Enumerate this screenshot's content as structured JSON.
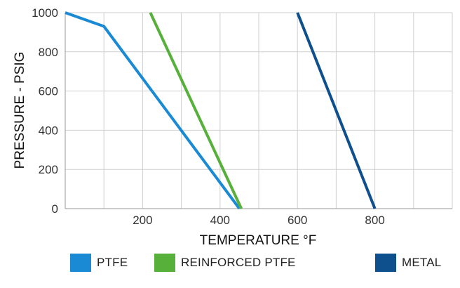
{
  "chart_data": {
    "type": "line",
    "xlabel": "TEMPERATURE °F",
    "ylabel": "PRESSURE - PSIG",
    "xlim": [
      0,
      1000
    ],
    "ylim": [
      0,
      1000
    ],
    "x_ticks": [
      200,
      400,
      600,
      800
    ],
    "y_ticks": [
      0,
      200,
      400,
      600,
      800,
      1000
    ],
    "grid": true,
    "legend_position": "bottom",
    "series": [
      {
        "name": "PTFE",
        "color": "#1a8ad4",
        "points": [
          [
            0,
            1000
          ],
          [
            100,
            930
          ],
          [
            450,
            0
          ]
        ]
      },
      {
        "name": "REINFORCED PTFE",
        "color": "#56b03a",
        "points": [
          [
            220,
            1000
          ],
          [
            455,
            0
          ]
        ]
      },
      {
        "name": "METAL",
        "color": "#0e4f8e",
        "points": [
          [
            600,
            1000
          ],
          [
            800,
            0
          ]
        ]
      }
    ]
  }
}
